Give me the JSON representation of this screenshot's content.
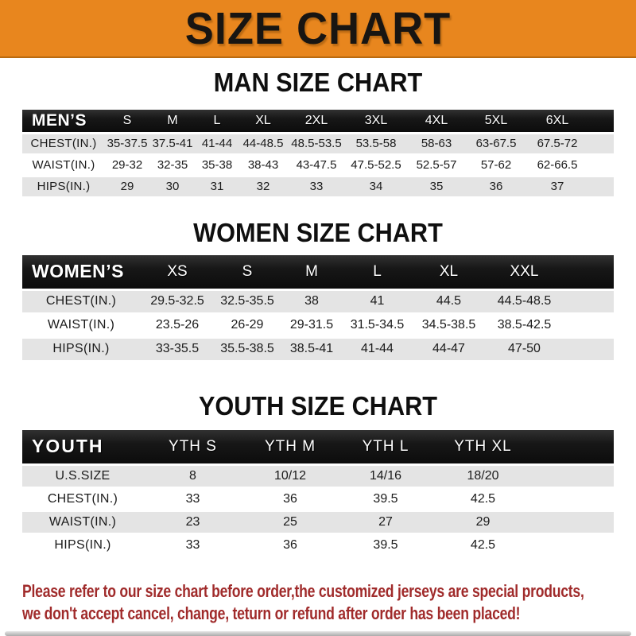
{
  "banner": {
    "title": "SIZE CHART"
  },
  "sections": [
    {
      "key": "men",
      "heading": "MAN SIZE CHART",
      "corner": "MEN’S",
      "columns": [
        "S",
        "M",
        "L",
        "XL",
        "2XL",
        "3XL",
        "4XL",
        "5XL",
        "6XL"
      ],
      "rows": [
        {
          "label": "CHEST(IN.)",
          "values": [
            "35-37.5",
            "37.5-41",
            "41-44",
            "44-48.5",
            "48.5-53.5",
            "53.5-58",
            "58-63",
            "63-67.5",
            "67.5-72"
          ]
        },
        {
          "label": "WAIST(IN.)",
          "values": [
            "29-32",
            "32-35",
            "35-38",
            "38-43",
            "43-47.5",
            "47.5-52.5",
            "52.5-57",
            "57-62",
            "62-66.5"
          ]
        },
        {
          "label": "HIPS(IN.)",
          "values": [
            "29",
            "30",
            "31",
            "32",
            "33",
            "34",
            "35",
            "36",
            "37"
          ]
        }
      ]
    },
    {
      "key": "women",
      "heading": "WOMEN SIZE CHART",
      "corner": "WOMEN’S",
      "columns": [
        "XS",
        "S",
        "M",
        "L",
        "XL",
        "XXL"
      ],
      "rows": [
        {
          "label": "CHEST(IN.)",
          "values": [
            "29.5-32.5",
            "32.5-35.5",
            "38",
            "41",
            "44.5",
            "44.5-48.5"
          ]
        },
        {
          "label": "WAIST(IN.)",
          "values": [
            "23.5-26",
            "26-29",
            "29-31.5",
            "31.5-34.5",
            "34.5-38.5",
            "38.5-42.5"
          ]
        },
        {
          "label": "HIPS(IN.)",
          "values": [
            "33-35.5",
            "35.5-38.5",
            "38.5-41",
            "41-44",
            "44-47",
            "47-50"
          ]
        }
      ]
    },
    {
      "key": "youth",
      "heading": "YOUTH SIZE CHART",
      "corner": "YOUTH",
      "columns": [
        "YTH S",
        "YTH M",
        "YTH L",
        "YTH XL"
      ],
      "rows": [
        {
          "label": "U.S.SIZE",
          "values": [
            "8",
            "10/12",
            "14/16",
            "18/20"
          ]
        },
        {
          "label": "CHEST(IN.)",
          "values": [
            "33",
            "36",
            "39.5",
            "42.5"
          ]
        },
        {
          "label": "WAIST(IN.)",
          "values": [
            "23",
            "25",
            "27",
            "29"
          ]
        },
        {
          "label": "HIPS(IN.)",
          "values": [
            "33",
            "36",
            "39.5",
            "42.5"
          ]
        }
      ]
    }
  ],
  "footer": {
    "lines": [
      "Please refer to our size chart before order,the customized jerseys are special products,",
      "we don't accept cancel, change, teturn or refund after order has been placed!"
    ]
  },
  "colors": {
    "banner_bg": "#E8861E",
    "header_bar": "#161616",
    "row_alt": "#E4E4E4",
    "footer_text": "#A02B2B"
  }
}
